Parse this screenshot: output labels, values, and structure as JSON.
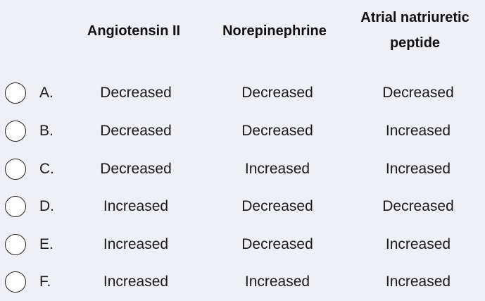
{
  "headers": {
    "col1": "Angiotensin II",
    "col2": "Norepinephrine",
    "col3_line1": "Atrial natriuretic",
    "col3_line2": "peptide"
  },
  "options": [
    {
      "letter": "A.",
      "angiotensin": "Decreased",
      "norepinephrine": "Decreased",
      "anp": "Decreased"
    },
    {
      "letter": "B.",
      "angiotensin": "Decreased",
      "norepinephrine": "Decreased",
      "anp": "Increased"
    },
    {
      "letter": "C.",
      "angiotensin": "Decreased",
      "norepinephrine": "Increased",
      "anp": "Increased"
    },
    {
      "letter": "D.",
      "angiotensin": "Increased",
      "norepinephrine": "Decreased",
      "anp": "Decreased"
    },
    {
      "letter": "E.",
      "angiotensin": "Increased",
      "norepinephrine": "Decreased",
      "anp": "Increased"
    },
    {
      "letter": "F.",
      "angiotensin": "Increased",
      "norepinephrine": "Increased",
      "anp": "Increased"
    }
  ]
}
